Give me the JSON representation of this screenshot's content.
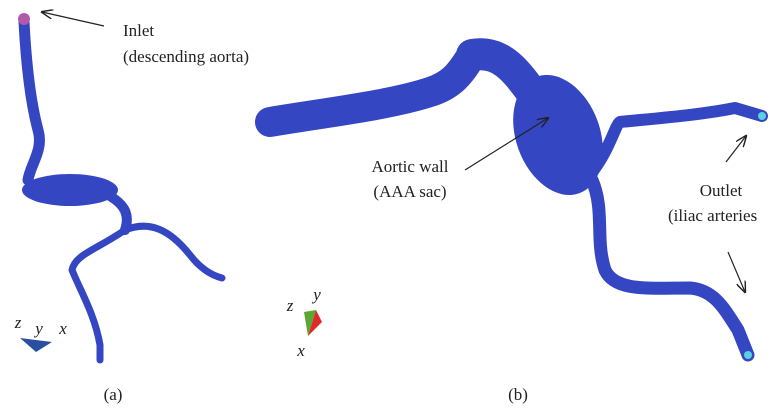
{
  "panels": [
    {
      "caption": "(a)",
      "annotations": [
        {
          "lines": [
            "Inlet",
            "(descending aorta)"
          ]
        }
      ],
      "axes": [
        "z",
        "y",
        "x"
      ]
    },
    {
      "caption": "(b)",
      "annotations": [
        {
          "lines": [
            "Aortic wall",
            "(AAA sac)"
          ]
        },
        {
          "lines": [
            "Outlet",
            "(iliac arteries"
          ]
        }
      ],
      "axes": [
        "z",
        "y",
        "x"
      ]
    }
  ]
}
